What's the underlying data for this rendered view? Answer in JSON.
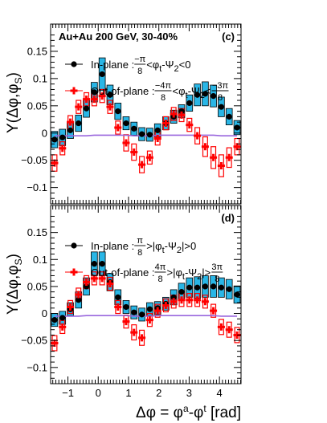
{
  "chart_data": [
    {
      "type": "scatter",
      "panel_label": "(c)",
      "title": "Au+Au 200 GeV, 30-40%",
      "ylabel_main": "Y(Δφ,φ",
      "ylabel_sub": "S",
      "ylabel_close": ")",
      "xlim": [
        -1.571,
        4.712
      ],
      "ylim": [
        -0.13,
        0.2
      ],
      "yticks": [
        -0.1,
        -0.05,
        0,
        0.05,
        0.1,
        0.15
      ],
      "ytick_labels": [
        "−0.1",
        "−0.05",
        "0",
        "0.05",
        "0.1",
        "0.15"
      ],
      "x": [
        -1.44,
        -1.18,
        -0.92,
        -0.65,
        -0.39,
        -0.13,
        0.13,
        0.39,
        0.65,
        0.92,
        1.18,
        1.44,
        1.7,
        1.96,
        2.23,
        2.49,
        2.75,
        3.01,
        3.27,
        3.53,
        3.8,
        4.06,
        4.32,
        4.58
      ],
      "series": [
        {
          "name": "In-plane",
          "legend_text": "In-plane : ",
          "legend_cond": "<φ",
          "legend_cond_tail": "<0",
          "legend_frac1_num": "−π",
          "legend_frac1_den": "8",
          "legend_frac2_num": "",
          "legend_frac2_den": "",
          "marker": "circle",
          "color": "#000000",
          "box_color": "#29b6e6",
          "values": [
            -0.012,
            -0.008,
            0.005,
            0.018,
            0.045,
            0.075,
            0.108,
            0.07,
            0.04,
            0.018,
            0.008,
            -0.002,
            -0.003,
            0.005,
            0.018,
            0.03,
            0.04,
            0.055,
            0.07,
            0.072,
            0.068,
            0.048,
            0.03,
            0.01
          ],
          "sys": [
            0.015,
            0.015,
            0.015,
            0.015,
            0.016,
            0.018,
            0.03,
            0.018,
            0.015,
            0.012,
            0.012,
            0.012,
            0.012,
            0.012,
            0.012,
            0.012,
            0.012,
            0.015,
            0.02,
            0.022,
            0.02,
            0.018,
            0.015,
            0.013
          ]
        },
        {
          "name": "Out-of-plane",
          "legend_text": "Out-of-plane : ",
          "legend_cond": "<φ",
          "legend_cond_tail": "<",
          "legend_frac1_num": "−4π",
          "legend_frac1_den": "8",
          "legend_frac2_num": "−3π",
          "legend_frac2_den": "8",
          "marker": "cross",
          "color": "#ff0000",
          "box_color": "#ff0000",
          "values": [
            -0.055,
            -0.028,
            0.02,
            0.048,
            0.062,
            0.062,
            0.068,
            0.048,
            0.01,
            -0.018,
            -0.035,
            -0.058,
            -0.045,
            -0.01,
            0.018,
            0.035,
            0.033,
            0.015,
            -0.005,
            -0.025,
            -0.045,
            -0.06,
            -0.045,
            -0.025
          ],
          "sys": [
            0.015,
            0.012,
            0.012,
            0.012,
            0.012,
            0.012,
            0.012,
            0.012,
            0.012,
            0.015,
            0.015,
            0.015,
            0.012,
            0.012,
            0.012,
            0.012,
            0.012,
            0.012,
            0.015,
            0.018,
            0.02,
            0.02,
            0.018,
            0.015
          ]
        }
      ],
      "baseline": {
        "color": "#9966dd",
        "values": [
          -0.005,
          -0.005,
          -0.005,
          -0.005,
          -0.005,
          -0.004,
          -0.004,
          -0.004,
          -0.004,
          -0.004,
          -0.005,
          -0.005,
          -0.005,
          -0.004,
          -0.004,
          -0.004,
          -0.004,
          -0.004,
          -0.004,
          -0.004,
          -0.004,
          -0.005,
          -0.005,
          -0.005
        ]
      }
    },
    {
      "type": "scatter",
      "panel_label": "(d)",
      "title": "",
      "ylabel_main": "Y(Δφ,φ",
      "ylabel_sub": "S",
      "ylabel_close": ")",
      "xlim": [
        -1.571,
        4.712
      ],
      "ylim": [
        -0.13,
        0.2
      ],
      "yticks": [
        -0.1,
        -0.05,
        0,
        0.05,
        0.1,
        0.15
      ],
      "ytick_labels": [
        "−0.1",
        "−0.05",
        "0",
        "0.05",
        "0.1",
        "0.15"
      ],
      "xticks": [
        -1,
        0,
        1,
        2,
        3,
        4
      ],
      "xtick_labels": [
        "−1",
        "0",
        "1",
        "2",
        "3",
        "4"
      ],
      "xlabel": "Δφ = φ",
      "xlabel_sup1": "a",
      "xlabel_mid": "-φ",
      "xlabel_sup2": "t",
      "xlabel_unit": " [rad]",
      "x": [
        -1.44,
        -1.18,
        -0.92,
        -0.65,
        -0.39,
        -0.13,
        0.13,
        0.39,
        0.65,
        0.92,
        1.18,
        1.44,
        1.7,
        1.96,
        2.23,
        2.49,
        2.75,
        3.01,
        3.27,
        3.53,
        3.8,
        4.06,
        4.32,
        4.58
      ],
      "series": [
        {
          "name": "In-plane",
          "legend_text": "In-plane : ",
          "legend_cond": ">|φ",
          "legend_cond_tail": "|>0",
          "legend_frac1_num": "π",
          "legend_frac1_den": "8",
          "legend_frac2_num": "",
          "legend_frac2_den": "",
          "marker": "circle",
          "color": "#000000",
          "box_color": "#29b6e6",
          "values": [
            -0.012,
            -0.008,
            0.008,
            0.025,
            0.05,
            0.092,
            0.092,
            0.058,
            0.03,
            0.012,
            0.002,
            -0.002,
            0.008,
            0.01,
            0.018,
            0.03,
            0.04,
            0.048,
            0.048,
            0.05,
            0.05,
            0.048,
            0.045,
            0.035
          ],
          "sys": [
            0.012,
            0.012,
            0.012,
            0.015,
            0.016,
            0.022,
            0.022,
            0.016,
            0.014,
            0.012,
            0.012,
            0.012,
            0.012,
            0.012,
            0.012,
            0.014,
            0.016,
            0.018,
            0.02,
            0.02,
            0.02,
            0.018,
            0.018,
            0.016
          ]
        },
        {
          "name": "Out-of-plane",
          "legend_text": "Out-of-plane : ",
          "legend_cond": ">|φ",
          "legend_cond_tail": "|>",
          "legend_frac1_num": "4π",
          "legend_frac1_den": "8",
          "legend_frac2_num": "3π",
          "legend_frac2_den": "8",
          "marker": "cross",
          "color": "#ff0000",
          "box_color": "#ff0000",
          "values": [
            -0.055,
            -0.025,
            0.012,
            0.035,
            0.058,
            0.065,
            0.065,
            0.055,
            0.012,
            -0.015,
            -0.035,
            -0.045,
            -0.012,
            0.005,
            0.015,
            0.022,
            0.025,
            0.025,
            0.025,
            0.022,
            0.005,
            -0.025,
            -0.03,
            -0.04
          ],
          "sys": [
            0.014,
            0.012,
            0.012,
            0.012,
            0.012,
            0.012,
            0.012,
            0.012,
            0.012,
            0.012,
            0.014,
            0.014,
            0.012,
            0.012,
            0.012,
            0.012,
            0.012,
            0.012,
            0.012,
            0.012,
            0.012,
            0.014,
            0.014,
            0.014
          ]
        }
      ],
      "baseline": {
        "color": "#9966dd",
        "values": [
          -0.005,
          -0.005,
          -0.005,
          -0.005,
          -0.004,
          -0.004,
          -0.004,
          -0.004,
          -0.004,
          -0.004,
          -0.005,
          -0.005,
          -0.005,
          -0.004,
          -0.004,
          -0.004,
          -0.004,
          -0.004,
          -0.004,
          -0.004,
          -0.004,
          -0.005,
          -0.005,
          -0.005
        ]
      }
    }
  ],
  "legend_sym": {
    "phi_t": "t",
    "psi_sub": "2",
    "minus_psi": "-Ψ"
  }
}
